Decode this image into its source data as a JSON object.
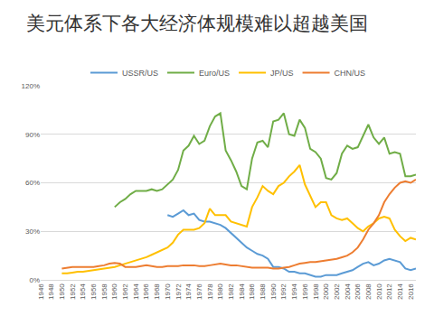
{
  "chart_data": {
    "type": "line",
    "title": "美元体系下各大经济体规模难以超越美国",
    "x": [
      1946,
      1947,
      1948,
      1949,
      1950,
      1951,
      1952,
      1953,
      1954,
      1955,
      1956,
      1957,
      1958,
      1959,
      1960,
      1961,
      1962,
      1963,
      1964,
      1965,
      1966,
      1967,
      1968,
      1969,
      1970,
      1971,
      1972,
      1973,
      1974,
      1975,
      1976,
      1977,
      1978,
      1979,
      1980,
      1981,
      1982,
      1983,
      1984,
      1985,
      1986,
      1987,
      1988,
      1989,
      1990,
      1991,
      1992,
      1993,
      1994,
      1995,
      1996,
      1997,
      1998,
      1999,
      2000,
      2001,
      2002,
      2003,
      2004,
      2005,
      2006,
      2007,
      2008,
      2009,
      2010,
      2011,
      2012,
      2013,
      2014,
      2015,
      2016,
      2017
    ],
    "xlim": [
      1946,
      2017
    ],
    "xticks": [
      1946,
      1948,
      1950,
      1952,
      1954,
      1956,
      1958,
      1960,
      1962,
      1964,
      1966,
      1968,
      1970,
      1972,
      1974,
      1976,
      1978,
      1980,
      1982,
      1984,
      1986,
      1988,
      1990,
      1992,
      1994,
      1996,
      1998,
      2000,
      2002,
      2004,
      2006,
      2008,
      2010,
      2012,
      2014,
      2016
    ],
    "ylim": [
      0,
      120
    ],
    "yticks": [
      {
        "value": 0,
        "label": "0%"
      },
      {
        "value": 30,
        "label": "30%"
      },
      {
        "value": 60,
        "label": "60%"
      },
      {
        "value": 90,
        "label": "90%"
      },
      {
        "value": 120,
        "label": "120%"
      }
    ],
    "grid": true,
    "legend": "top",
    "series": [
      {
        "name": "USSR/US",
        "color": "#5b9bd5",
        "values": [
          null,
          null,
          null,
          null,
          null,
          null,
          null,
          null,
          null,
          null,
          null,
          null,
          null,
          null,
          null,
          null,
          null,
          null,
          null,
          null,
          null,
          null,
          null,
          null,
          40,
          39,
          41,
          43,
          40,
          41,
          37,
          36,
          36,
          35,
          34,
          32,
          29,
          26,
          23,
          20,
          18,
          16,
          15,
          13,
          8,
          8,
          7,
          5,
          5,
          4,
          4,
          3,
          2,
          2,
          3,
          3,
          3,
          4,
          5,
          6,
          8,
          10,
          11,
          9,
          10,
          12,
          13,
          12,
          11,
          7,
          6,
          7
        ]
      },
      {
        "name": "Euro/US",
        "color": "#70ad47",
        "values": [
          null,
          null,
          null,
          null,
          null,
          null,
          null,
          null,
          null,
          null,
          null,
          null,
          null,
          null,
          45,
          48,
          50,
          53,
          55,
          55,
          55,
          56,
          55,
          56,
          59,
          62,
          68,
          80,
          83,
          89,
          84,
          86,
          95,
          101,
          103,
          80,
          74,
          67,
          58,
          56,
          75,
          85,
          86,
          82,
          98,
          99,
          103,
          90,
          89,
          99,
          94,
          81,
          79,
          75,
          63,
          62,
          66,
          78,
          83,
          81,
          82,
          89,
          96,
          88,
          84,
          88,
          78,
          79,
          78,
          64,
          64,
          65
        ]
      },
      {
        "name": "JP/US",
        "color": "#ffc000",
        "values": [
          null,
          null,
          null,
          null,
          4,
          4,
          4.5,
          5,
          5,
          5.5,
          6,
          6.5,
          7,
          7.5,
          8,
          9,
          10,
          11,
          12,
          13,
          14,
          15.5,
          17,
          18.5,
          20,
          23,
          28,
          31,
          31,
          31,
          32,
          35,
          44,
          40,
          40,
          40,
          36,
          35,
          34,
          33,
          45,
          51,
          58,
          55,
          53,
          58,
          60,
          64,
          67,
          71,
          59,
          52,
          45,
          48,
          48,
          40,
          38,
          37,
          38,
          35,
          32,
          30,
          33,
          35,
          38,
          39,
          38,
          31,
          27,
          24,
          26,
          25
        ]
      },
      {
        "name": "CHN/US",
        "color": "#ed7d31",
        "values": [
          null,
          null,
          null,
          null,
          7,
          7.5,
          8,
          8,
          8,
          8,
          8,
          8.5,
          9,
          10,
          10.5,
          10,
          8,
          8,
          8,
          8.5,
          9,
          8.5,
          8,
          8,
          8.5,
          8.5,
          8.5,
          9,
          9,
          9,
          8.5,
          8.5,
          9,
          9.5,
          10,
          9.5,
          9,
          9,
          8.5,
          8,
          7.5,
          7.5,
          7.5,
          7.5,
          7,
          7,
          7.5,
          8,
          9,
          10,
          10.5,
          11,
          11,
          11.5,
          12,
          12.5,
          13,
          14,
          15,
          17,
          20,
          25,
          31,
          35,
          40,
          48,
          53,
          57,
          60,
          61,
          60,
          62
        ]
      }
    ]
  }
}
